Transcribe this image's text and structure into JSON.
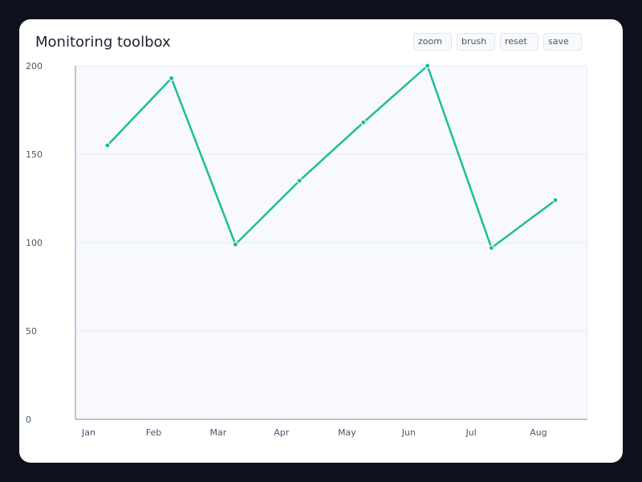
{
  "header": {
    "title": "Monitoring toolbox"
  },
  "toolbar": {
    "buttons": [
      {
        "name": "zoom-button",
        "label": "zoom"
      },
      {
        "name": "brush-button",
        "label": "brush"
      },
      {
        "name": "reset-button",
        "label": "reset"
      },
      {
        "name": "save-button",
        "label": "save"
      }
    ]
  },
  "colors": {
    "line": "#1dbc9c",
    "plot_bg": "#f7f9fd",
    "grid": "#e6ebf3",
    "axis": "#aab4c6"
  },
  "chart_data": {
    "type": "line",
    "title": "",
    "xlabel": "",
    "ylabel": "",
    "categories": [
      "Jan",
      "Feb",
      "Mar",
      "Apr",
      "May",
      "Jun",
      "Jul",
      "Aug"
    ],
    "series": [
      {
        "values": [
          155,
          193,
          99,
          135,
          168,
          200,
          97,
          124
        ]
      }
    ],
    "ylim": [
      0,
      200
    ],
    "yticks": [
      0,
      50,
      100,
      150,
      200
    ],
    "grid": true,
    "legend": "none"
  }
}
